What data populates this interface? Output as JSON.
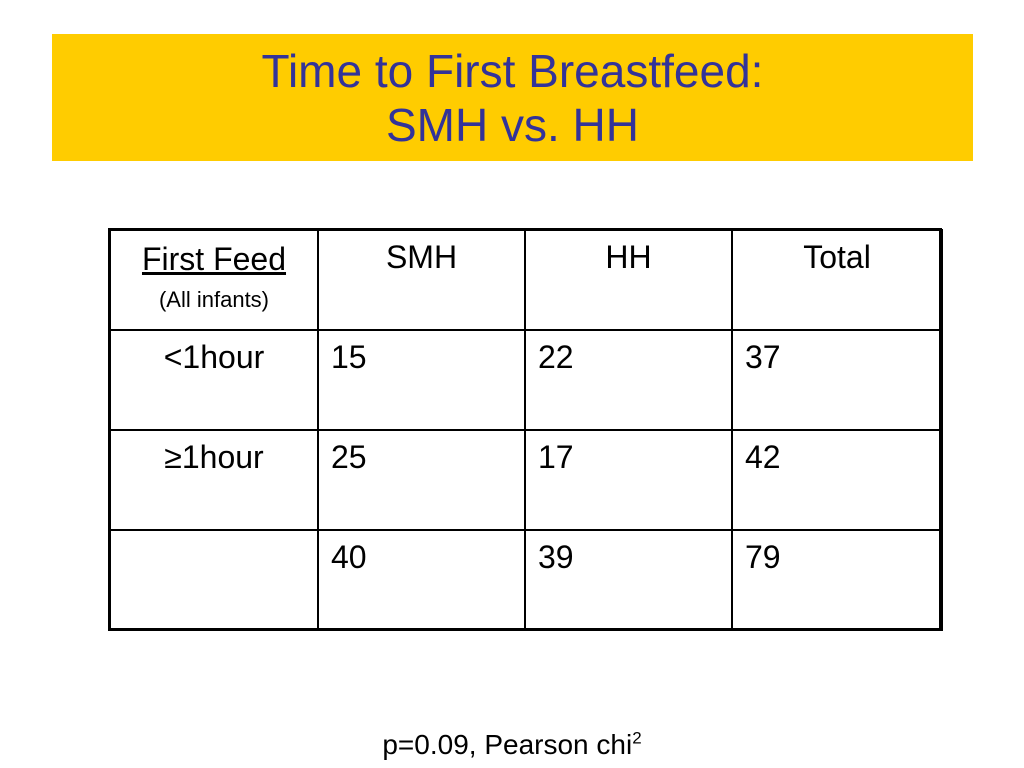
{
  "slide": {
    "title_line1": "Time to First Breastfeed:",
    "title_line2": "SMH vs. HH",
    "colors": {
      "title_band": "#ffcc00",
      "title_text": "#333399"
    }
  },
  "table": {
    "header": {
      "first_col_label": "First Feed",
      "first_col_sub": "(All infants)",
      "columns": [
        "SMH",
        "HH",
        "Total"
      ]
    },
    "rows": [
      {
        "label": "<1hour",
        "values": [
          "15",
          "22",
          "37"
        ]
      },
      {
        "label": "≥1hour",
        "values": [
          "25",
          "17",
          "42"
        ]
      },
      {
        "label": "",
        "values": [
          "40",
          "39",
          "79"
        ]
      }
    ]
  },
  "footnote": {
    "text": "p=0.09, Pearson chi",
    "superscript": "2"
  }
}
